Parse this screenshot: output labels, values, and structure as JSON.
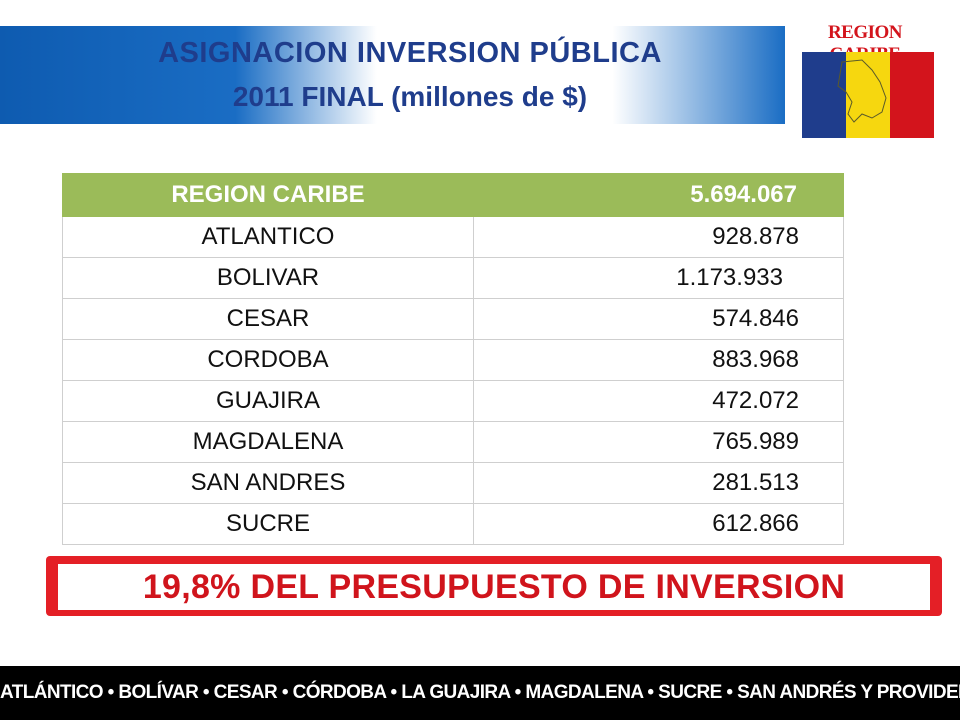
{
  "header": {
    "title_line1": "ASIGNACION INVERSION PÚBLICA",
    "title_line2": "2011 FINAL (millones de $)"
  },
  "logo": {
    "text": "REGION CARIBE",
    "flag_colors": [
      "#1f3d8c",
      "#f6d70f",
      "#d3141c"
    ]
  },
  "table": {
    "header": {
      "name": "REGION CARIBE",
      "value": "5.694.067"
    },
    "rows": [
      {
        "name": "ATLANTICO",
        "value": "928.878"
      },
      {
        "name": "BOLIVAR",
        "value": "1.173.933"
      },
      {
        "name": "CESAR",
        "value": "574.846"
      },
      {
        "name": "CORDOBA",
        "value": "883.968"
      },
      {
        "name": "GUAJIRA",
        "value": "472.072"
      },
      {
        "name": "MAGDALENA",
        "value": "765.989"
      },
      {
        "name": "SAN ANDRES",
        "value": "281.513"
      },
      {
        "name": "SUCRE",
        "value": "612.866"
      }
    ],
    "header_color": "#9bbb59"
  },
  "banner": {
    "text": "19,8% DEL PRESUPUESTO DE INVERSION",
    "color": "#e41f26"
  },
  "footer": {
    "text": "ATLÁNTICO • BOLÍVAR • CESAR • CÓRDOBA • LA GUAJIRA • MAGDALENA • SUCRE • SAN ANDRÉS Y PROVIDENCIA"
  }
}
